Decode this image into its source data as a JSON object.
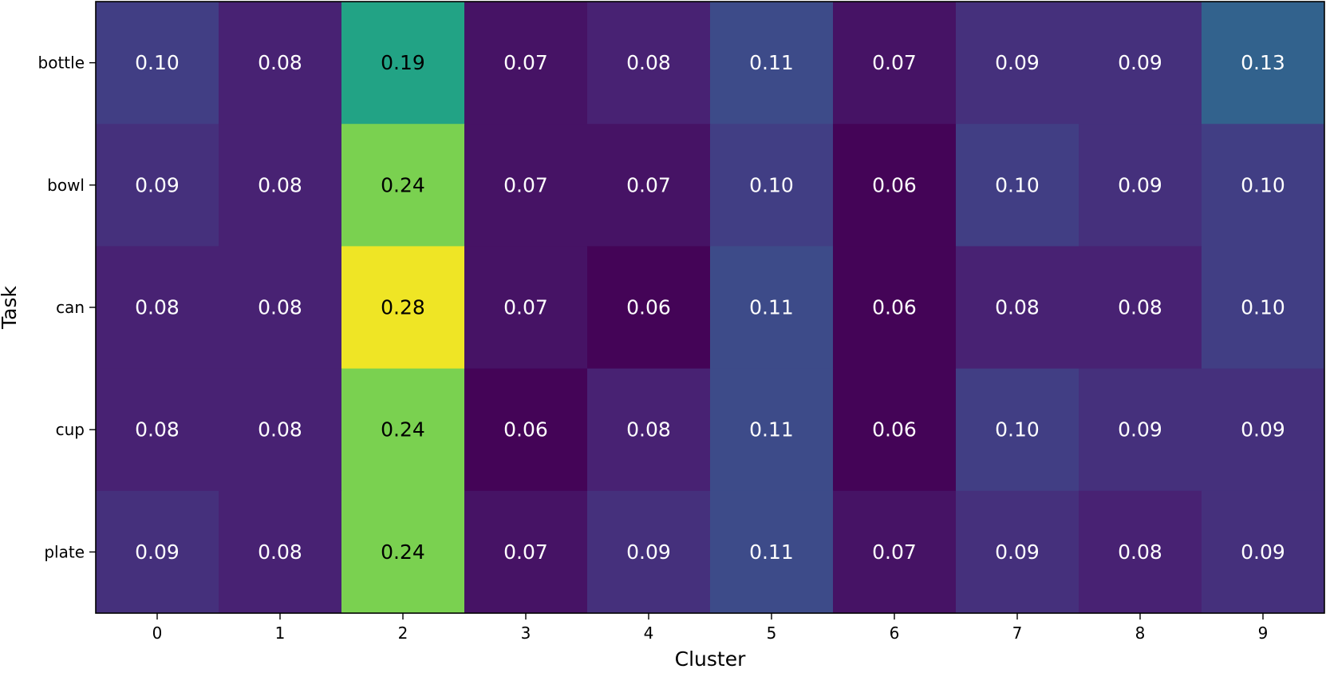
{
  "chart_data": {
    "type": "heatmap",
    "title": "",
    "xlabel": "Cluster",
    "ylabel": "Task",
    "x_categories": [
      "0",
      "1",
      "2",
      "3",
      "4",
      "5",
      "6",
      "7",
      "8",
      "9"
    ],
    "y_categories": [
      "bottle",
      "bowl",
      "can",
      "cup",
      "plate"
    ],
    "values": [
      [
        0.1,
        0.08,
        0.19,
        0.07,
        0.08,
        0.11,
        0.07,
        0.09,
        0.09,
        0.13
      ],
      [
        0.09,
        0.08,
        0.24,
        0.07,
        0.07,
        0.1,
        0.06,
        0.1,
        0.09,
        0.1
      ],
      [
        0.08,
        0.08,
        0.28,
        0.07,
        0.06,
        0.11,
        0.06,
        0.08,
        0.08,
        0.1
      ],
      [
        0.08,
        0.08,
        0.24,
        0.06,
        0.08,
        0.11,
        0.06,
        0.1,
        0.09,
        0.09
      ],
      [
        0.09,
        0.08,
        0.24,
        0.07,
        0.09,
        0.11,
        0.07,
        0.09,
        0.08,
        0.09
      ]
    ],
    "value_labels": [
      [
        "0.10",
        "0.08",
        "0.19",
        "0.07",
        "0.08",
        "0.11",
        "0.07",
        "0.09",
        "0.09",
        "0.13"
      ],
      [
        "0.09",
        "0.08",
        "0.24",
        "0.07",
        "0.07",
        "0.10",
        "0.06",
        "0.10",
        "0.09",
        "0.10"
      ],
      [
        "0.08",
        "0.08",
        "0.28",
        "0.07",
        "0.06",
        "0.11",
        "0.06",
        "0.08",
        "0.08",
        "0.10"
      ],
      [
        "0.08",
        "0.08",
        "0.24",
        "0.06",
        "0.08",
        "0.11",
        "0.06",
        "0.10",
        "0.09",
        "0.09"
      ],
      [
        "0.09",
        "0.08",
        "0.24",
        "0.07",
        "0.09",
        "0.11",
        "0.07",
        "0.09",
        "0.08",
        "0.09"
      ]
    ],
    "colormap": "viridis",
    "vmin": 0.058,
    "vmax": 0.285,
    "colors": {
      "cell_text_light": "#ffffff",
      "cell_text_dark": "#000000",
      "axis": "#000000"
    }
  }
}
